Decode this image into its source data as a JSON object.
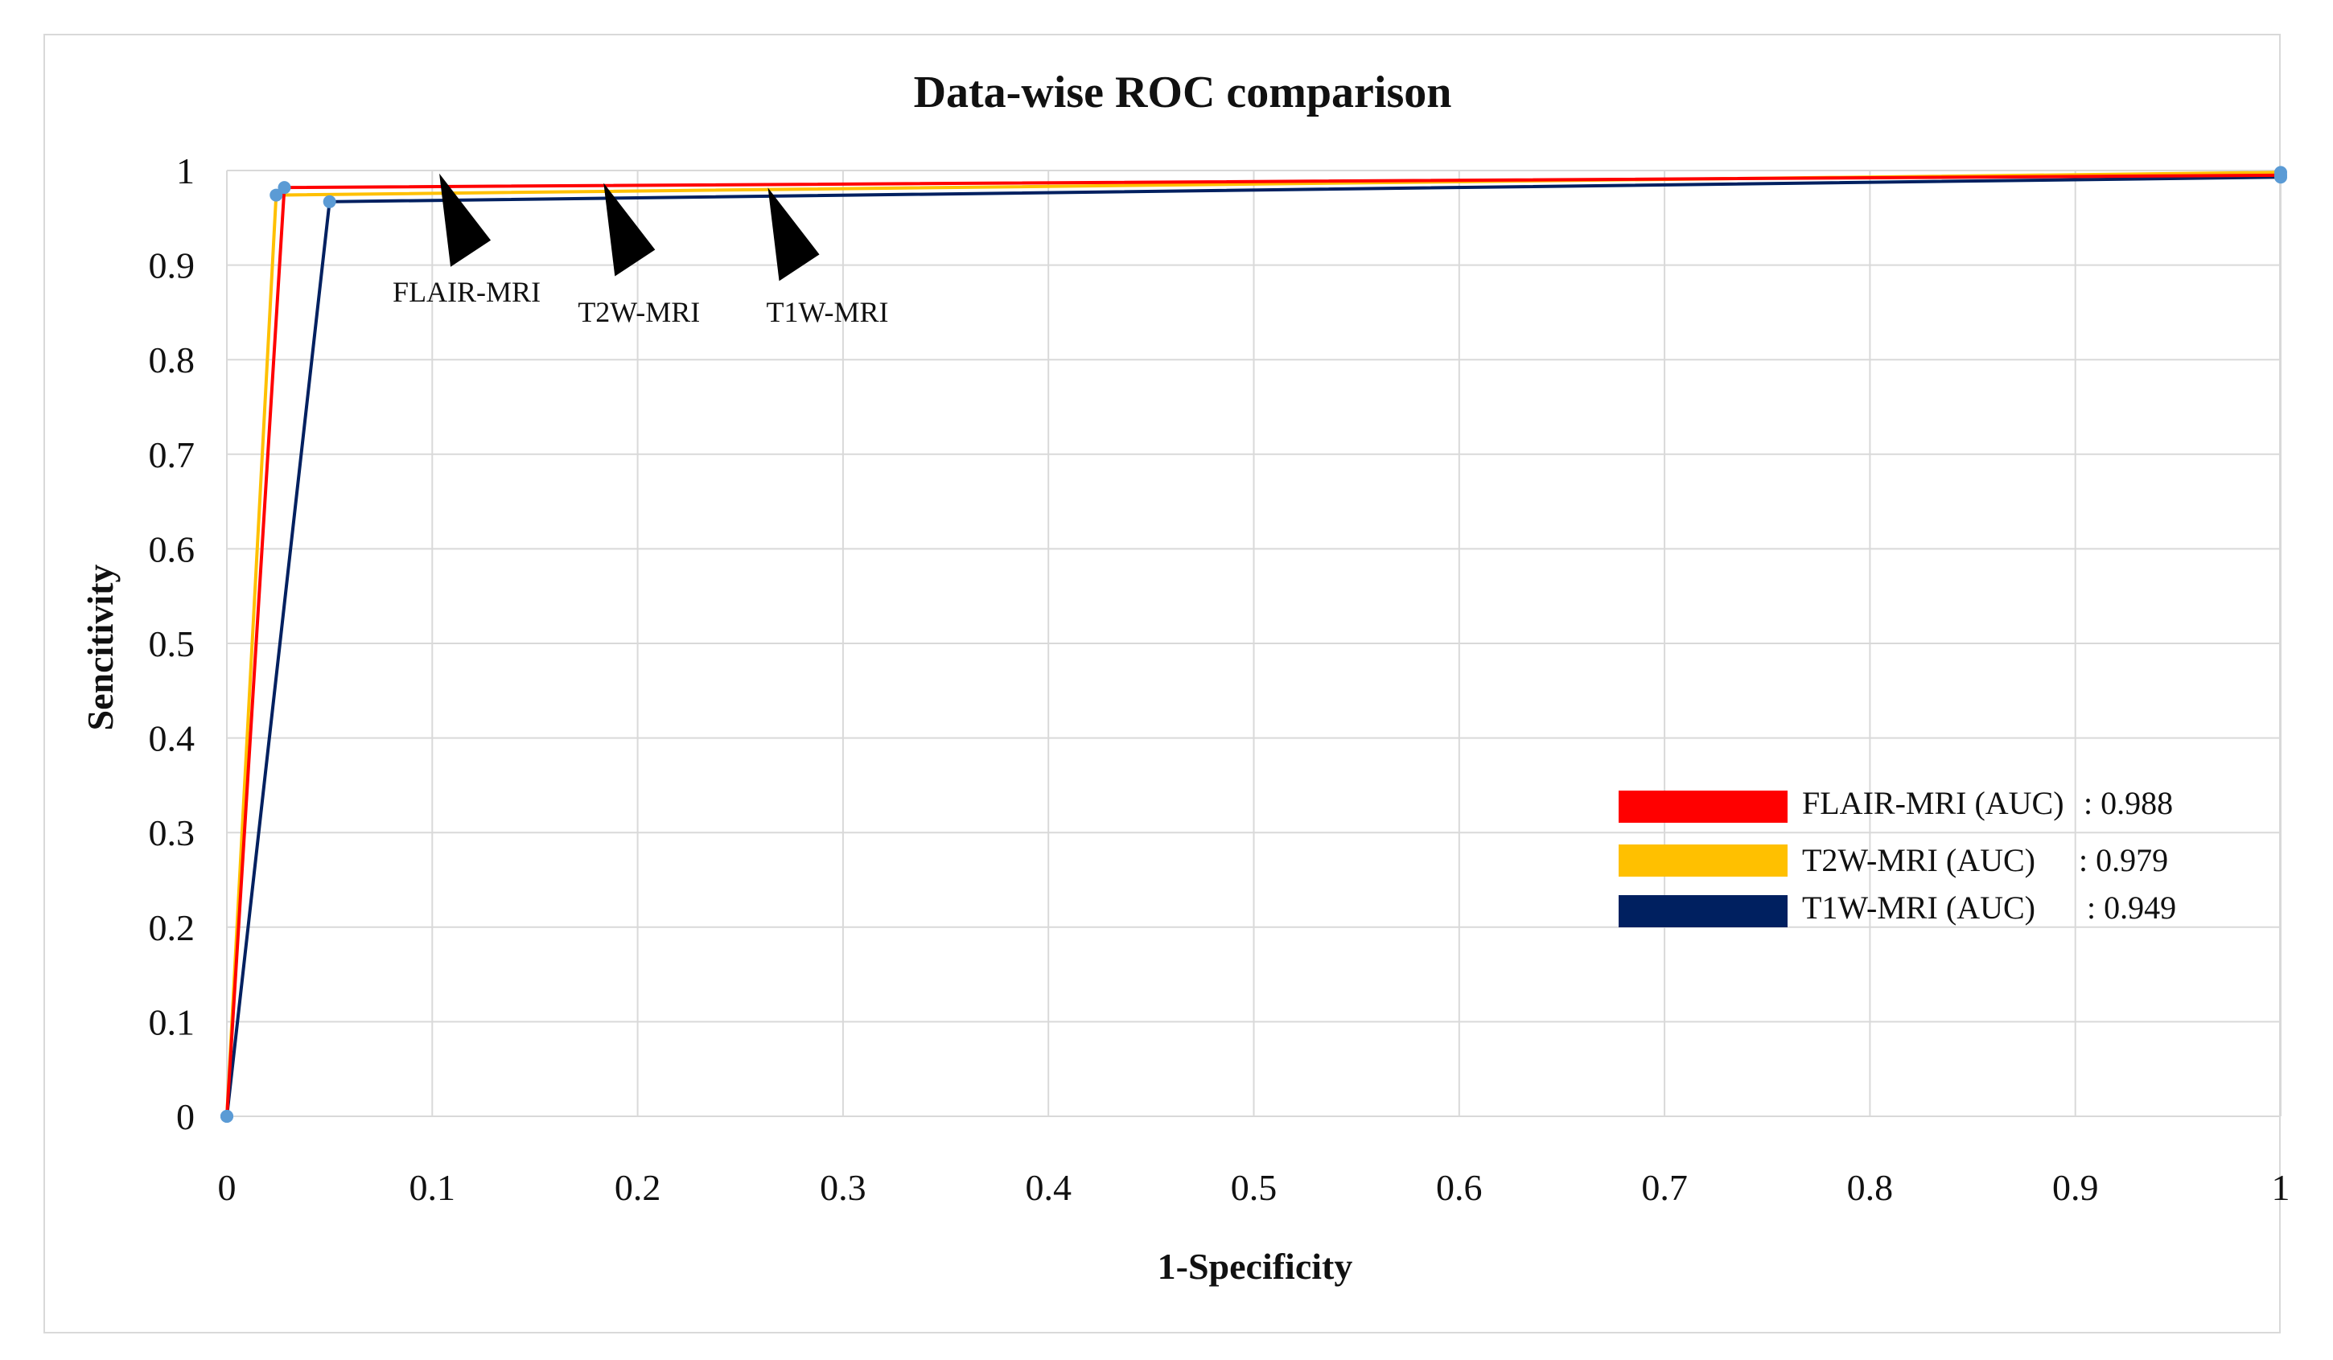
{
  "chart_data": {
    "type": "line",
    "title": "Data-wise ROC comparison",
    "xlabel": "1-Specificity",
    "ylabel": "Sencitivity",
    "xlim": [
      0,
      1
    ],
    "ylim": [
      0,
      1
    ],
    "grid": true,
    "x_ticks": [
      "0",
      "0.1",
      "0.2",
      "0.3",
      "0.4",
      "0.5",
      "0.6",
      "0.7",
      "0.8",
      "0.9",
      "1"
    ],
    "y_ticks": [
      "0",
      "0.1",
      "0.2",
      "0.3",
      "0.4",
      "0.5",
      "0.6",
      "0.7",
      "0.8",
      "0.9",
      "1"
    ],
    "series": [
      {
        "name": "FLAIR-MRI",
        "color": "#ff0000",
        "x": [
          0,
          0.028,
          1
        ],
        "y": [
          0,
          0.982,
          0.995
        ]
      },
      {
        "name": "T2W-MRI",
        "color": "#ffc000",
        "x": [
          0,
          0.024,
          1
        ],
        "y": [
          0,
          0.974,
          0.998
        ]
      },
      {
        "name": "T1W-MRI",
        "color": "#002060",
        "x": [
          0,
          0.05,
          1
        ],
        "y": [
          0,
          0.967,
          0.993
        ]
      }
    ],
    "annotations": [
      {
        "text": "FLAIR-MRI",
        "x": 0.105,
        "y": 0.99
      },
      {
        "text": "T2W-MRI",
        "x": 0.185,
        "y": 0.98
      },
      {
        "text": "T1W-MRI",
        "x": 0.265,
        "y": 0.975
      }
    ],
    "legend": {
      "position": "bottom-right",
      "entries": [
        {
          "label": "FLAIR-MRI (AUC)",
          "value": ": 0.988",
          "color": "#ff0000"
        },
        {
          "label": "T2W-MRI (AUC)",
          "value": ": 0.979",
          "color": "#ffc000"
        },
        {
          "label": "T1W-MRI (AUC)",
          "value": ": 0.949",
          "color": "#002060"
        }
      ]
    }
  },
  "colors": {
    "marker": "#5b9bd5",
    "grid": "#d9d9d9",
    "arrow": "#000000"
  }
}
